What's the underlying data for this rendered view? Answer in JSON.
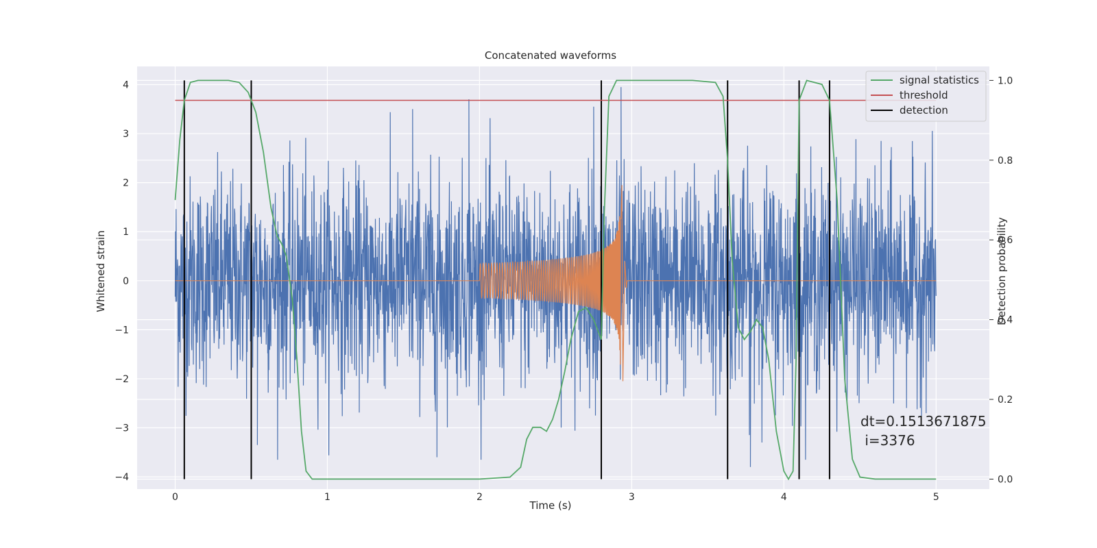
{
  "chart_data": {
    "type": "line",
    "title": "Concatenated waveforms",
    "xlabel": "Time (s)",
    "ylabel": "Whitened strain",
    "y2label": "Detection probability",
    "xlim": [
      -0.25,
      5.35
    ],
    "ylim": [
      -4.25,
      4.37
    ],
    "y2lim": [
      -0.025,
      1.035
    ],
    "xticks": [
      0,
      1,
      2,
      3,
      4,
      5
    ],
    "yticks": [
      -4,
      -3,
      -2,
      -1,
      0,
      1,
      2,
      3,
      4
    ],
    "y2ticks": [
      0.0,
      0.2,
      0.4,
      0.6,
      0.8,
      1.0
    ],
    "grid": true,
    "legend_position": "top-right",
    "annotation": {
      "line1": "dt=0.1513671875",
      "line2": " i=3376"
    },
    "colors": {
      "background": "#eaeaf2",
      "noise": "#4c72b0",
      "injection": "#dd8452",
      "signal_statistics": "#55a868",
      "threshold": "#c44e52",
      "detection": "#000000"
    },
    "series": [
      {
        "name": "",
        "kind": "noise",
        "x_range": [
          0,
          5
        ],
        "amplitude_range": [
          -3.65,
          3.95
        ],
        "peaks": [
          [
            1.93,
            3.7
          ],
          [
            1.72,
            -3.6
          ],
          [
            2.93,
            3.95
          ],
          [
            3.78,
            -3.8
          ],
          [
            0.54,
            -3.35
          ],
          [
            1.56,
            3.5
          ],
          [
            2.75,
            3.55
          ]
        ]
      },
      {
        "name": "",
        "kind": "chirp",
        "x_range": [
          2.0,
          2.97
        ],
        "amplitude_start": 0.35,
        "amplitude_peak": 1.95,
        "amplitude_trough": -2.05,
        "peak_time": 2.93
      },
      {
        "name": "signal statistics",
        "x": [
          0,
          0.03,
          0.06,
          0.1,
          0.15,
          0.25,
          0.35,
          0.42,
          0.48,
          0.53,
          0.58,
          0.63,
          0.67,
          0.7,
          0.73,
          0.77,
          0.8,
          0.83,
          0.86,
          0.9,
          1.0,
          1.5,
          2.0,
          2.2,
          2.27,
          2.31,
          2.35,
          2.4,
          2.44,
          2.48,
          2.52,
          2.56,
          2.6,
          2.65,
          2.7,
          2.75,
          2.77,
          2.8,
          2.82,
          2.85,
          2.9,
          3.0,
          3.4,
          3.55,
          3.6,
          3.63,
          3.66,
          3.7,
          3.74,
          3.78,
          3.82,
          3.86,
          3.9,
          3.95,
          4.0,
          4.03,
          4.06,
          4.08,
          4.1,
          4.15,
          4.25,
          4.3,
          4.35,
          4.4,
          4.45,
          4.5,
          4.6,
          5.0
        ],
        "y": [
          0.7,
          0.85,
          0.95,
          0.995,
          1.0,
          1.0,
          1.0,
          0.995,
          0.97,
          0.92,
          0.82,
          0.68,
          0.61,
          0.59,
          0.56,
          0.45,
          0.3,
          0.12,
          0.02,
          0.0,
          0.0,
          0.0,
          0.0,
          0.005,
          0.03,
          0.1,
          0.13,
          0.13,
          0.12,
          0.15,
          0.2,
          0.27,
          0.35,
          0.42,
          0.43,
          0.4,
          0.38,
          0.35,
          0.67,
          0.96,
          1.0,
          1.0,
          1.0,
          0.995,
          0.96,
          0.8,
          0.55,
          0.38,
          0.35,
          0.37,
          0.4,
          0.38,
          0.3,
          0.12,
          0.02,
          0.0,
          0.02,
          0.3,
          0.95,
          1.0,
          0.99,
          0.95,
          0.7,
          0.25,
          0.05,
          0.005,
          0.0,
          0.0
        ]
      },
      {
        "name": "threshold",
        "x": [
          0,
          5
        ],
        "y": [
          0.95,
          0.95
        ]
      },
      {
        "name": "detection",
        "x": [
          0.06,
          0.5,
          2.8,
          3.63,
          4.1,
          4.3
        ],
        "y_range": [
          0,
          1
        ]
      }
    ]
  }
}
